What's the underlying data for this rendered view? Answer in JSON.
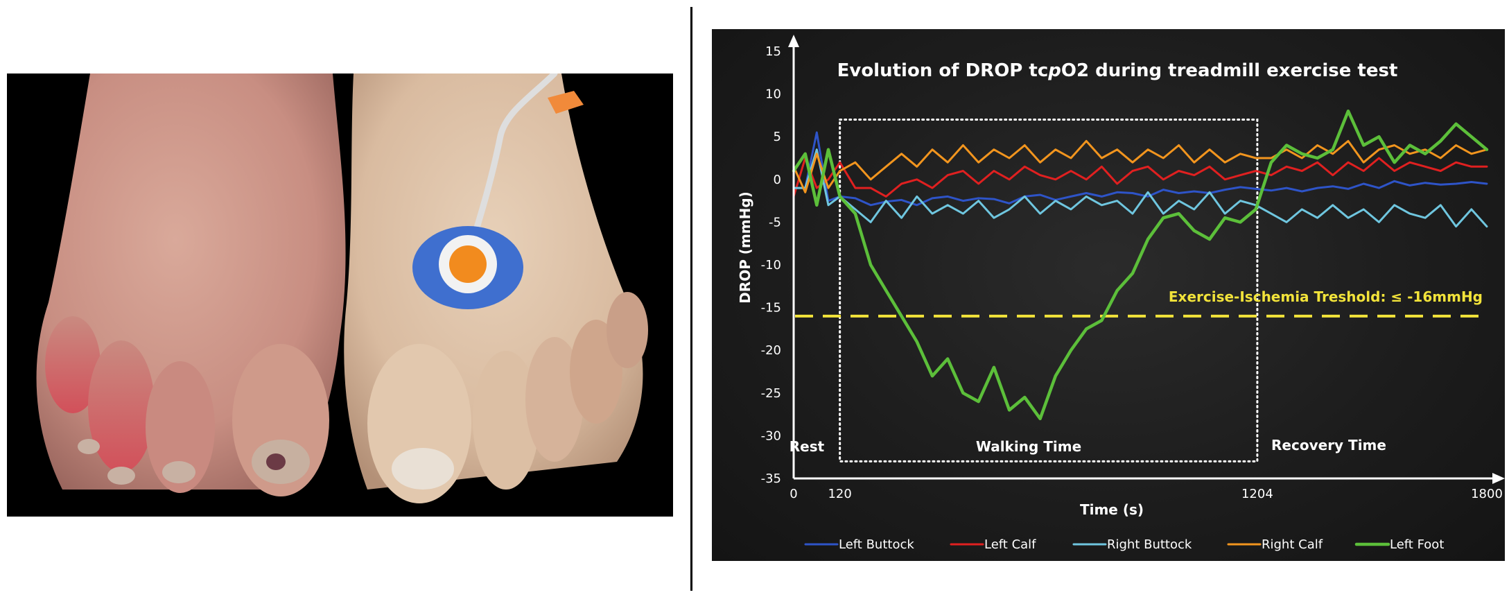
{
  "chart_data": {
    "type": "line",
    "title": "Evolution of DROP tcpO2 during treadmill exercise test",
    "xlabel": "Time (s)",
    "ylabel": "DROP (mmHg)",
    "xlim": [
      0,
      1800
    ],
    "ylim": [
      -35,
      15
    ],
    "x_ticks": [
      "0",
      "120",
      "1204",
      "1800"
    ],
    "y_ticks": [
      "15",
      "10",
      "5",
      "0",
      "-5",
      "-10",
      "-15",
      "-20",
      "-25",
      "-30",
      "-35"
    ],
    "threshold": {
      "value": -16,
      "label": "Exercise-Ischemia Treshold: ≤ -16mmHg",
      "color": "#f2e33a"
    },
    "phases": [
      {
        "label": "Rest"
      },
      {
        "label": "Walking Time",
        "box": {
          "x_start": 120,
          "x_end": 1204,
          "y_min": -33,
          "y_max": 7
        }
      },
      {
        "label": "Recovery Time"
      }
    ],
    "legend_placement": "bottom",
    "grid": false,
    "x": [
      0,
      30,
      60,
      90,
      120,
      160,
      200,
      240,
      280,
      320,
      360,
      400,
      440,
      480,
      520,
      560,
      600,
      640,
      680,
      720,
      760,
      800,
      840,
      880,
      920,
      960,
      1000,
      1040,
      1080,
      1120,
      1160,
      1200,
      1240,
      1280,
      1320,
      1360,
      1400,
      1440,
      1480,
      1520,
      1560,
      1600,
      1640,
      1680,
      1720,
      1760,
      1800
    ],
    "series": [
      {
        "name": "Left Buttock",
        "color": "#2e54c8",
        "width": 3,
        "values": [
          -1,
          -1,
          5.5,
          -2.5,
          -2,
          -2.2,
          -3,
          -2.6,
          -2.4,
          -3,
          -2.2,
          -2,
          -2.5,
          -2.2,
          -2.3,
          -2.8,
          -2,
          -1.8,
          -2.4,
          -2,
          -1.6,
          -2,
          -1.5,
          -1.6,
          -2,
          -1.2,
          -1.6,
          -1.4,
          -1.6,
          -1.2,
          -0.9,
          -1.1,
          -1.3,
          -1,
          -1.4,
          -1,
          -0.8,
          -1.1,
          -0.5,
          -1,
          -0.2,
          -0.7,
          -0.4,
          -0.6,
          -0.5,
          -0.3,
          -0.5
        ]
      },
      {
        "name": "Left Calf",
        "color": "#e02020",
        "width": 3,
        "values": [
          -2,
          2.5,
          -1,
          0,
          2,
          -1,
          -1,
          -2,
          -0.5,
          0,
          -1,
          0.5,
          1,
          -0.5,
          1,
          0,
          1.5,
          0.5,
          0,
          1,
          0,
          1.5,
          -0.5,
          1,
          1.5,
          0,
          1,
          0.5,
          1.5,
          0,
          0.5,
          1,
          0.5,
          1.5,
          1,
          2,
          0.5,
          2,
          1,
          2.5,
          1,
          2,
          1.5,
          1,
          2,
          1.5,
          1.5
        ]
      },
      {
        "name": "Right Buttock",
        "color": "#6fc6df",
        "width": 3,
        "values": [
          -1,
          -1,
          3.5,
          -3,
          -2,
          -3.5,
          -5,
          -2.5,
          -4.5,
          -2,
          -4,
          -3,
          -4,
          -2.5,
          -4.5,
          -3.5,
          -2,
          -4,
          -2.5,
          -3.5,
          -2,
          -3,
          -2.5,
          -4,
          -1.5,
          -4,
          -2.5,
          -3.5,
          -1.5,
          -4,
          -2.5,
          -3,
          -4,
          -5,
          -3.5,
          -4.5,
          -3,
          -4.5,
          -3.5,
          -5,
          -3,
          -4,
          -4.5,
          -3,
          -5.5,
          -3.5,
          -5.5
        ]
      },
      {
        "name": "Right Calf",
        "color": "#f2951e",
        "width": 3,
        "values": [
          1.5,
          -1.5,
          3,
          -1,
          1,
          2,
          0,
          1.5,
          3,
          1.5,
          3.5,
          2,
          4,
          2,
          3.5,
          2.5,
          4,
          2,
          3.5,
          2.5,
          4.5,
          2.5,
          3.5,
          2,
          3.5,
          2.5,
          4,
          2,
          3.5,
          2,
          3,
          2.5,
          2.5,
          3.5,
          2.5,
          4,
          3,
          4.5,
          2,
          3.5,
          4,
          3,
          3.5,
          2.5,
          4,
          3,
          3.5
        ]
      },
      {
        "name": "Left Foot",
        "color": "#5cbf3a",
        "width": 4.5,
        "values": [
          1,
          3,
          -3,
          3.5,
          -2,
          -4,
          -10,
          -13,
          -16,
          -19,
          -23,
          -21,
          -25,
          -26,
          -22,
          -27,
          -25.5,
          -28,
          -23,
          -20,
          -17.5,
          -16.5,
          -13,
          -11,
          -7,
          -4.5,
          -4,
          -6,
          -7,
          -4.5,
          -5,
          -3.5,
          2,
          4,
          3,
          2.5,
          3.5,
          8,
          4,
          5,
          2,
          4,
          3,
          4.5,
          6.5,
          5,
          3.5
        ]
      }
    ]
  }
}
